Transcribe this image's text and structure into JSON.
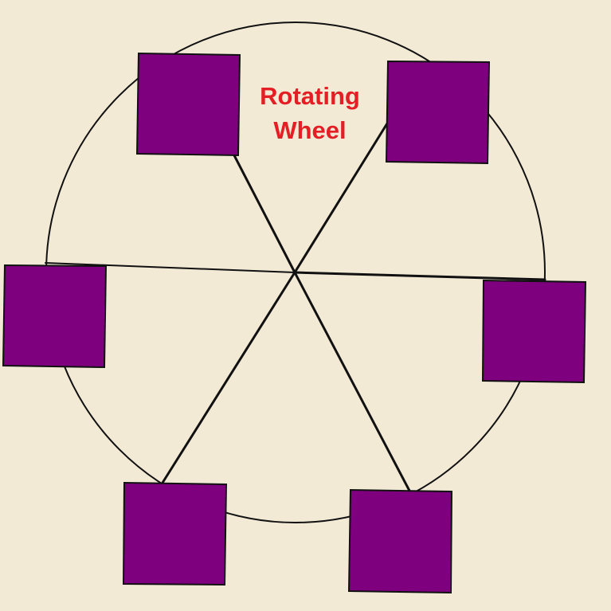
{
  "title": {
    "line1": "Rotating",
    "line2": "Wheel"
  },
  "colors": {
    "background": "#f3ead6",
    "car_fill": "#7f007f",
    "stroke": "#111111",
    "title": "#e31e24"
  },
  "wheel": {
    "spoke_count": 6,
    "car_count": 6
  }
}
